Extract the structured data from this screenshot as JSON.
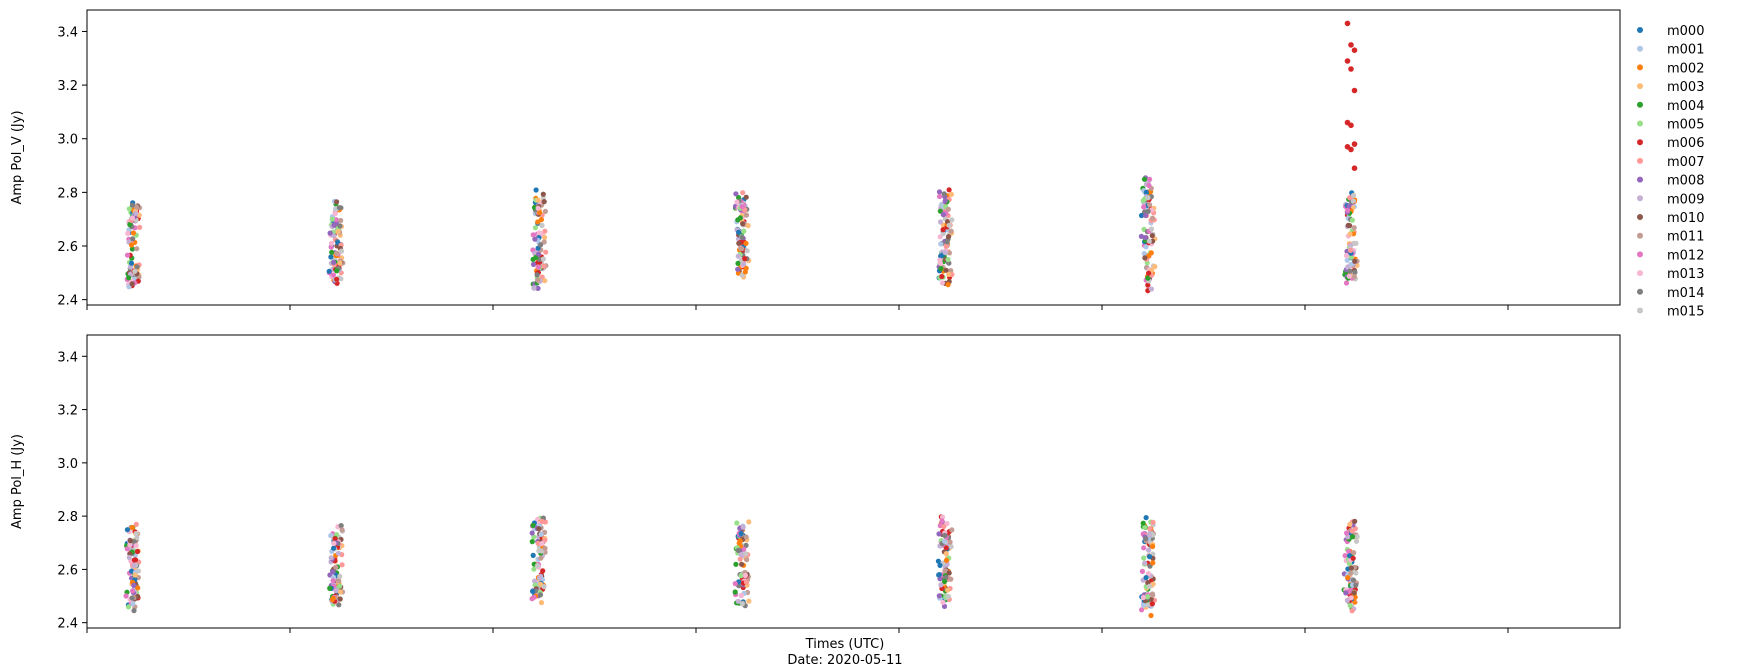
{
  "chart_data": {
    "type": "scatter",
    "xlabel": "Times (UTC)",
    "date_label": "Date: 2020-05-11",
    "x_tick_labels_visible": false,
    "x_tick_count": 8,
    "ylim": [
      2.38,
      3.48
    ],
    "yticks": [
      2.4,
      2.6,
      2.8,
      3.0,
      3.2,
      3.4
    ],
    "ytick_labels": [
      "2.4",
      "2.6",
      "2.8",
      "3.0",
      "3.2",
      "3.4"
    ],
    "grid": false,
    "legend_placement": "right-outside",
    "time_groups": [
      0.22,
      1.33,
      2.55,
      3.73,
      4.87,
      6.0,
      7.2
    ],
    "series": [
      {
        "name": "m000",
        "color": "#1f77b4"
      },
      {
        "name": "m001",
        "color": "#aec7e8"
      },
      {
        "name": "m002",
        "color": "#ff7f0e"
      },
      {
        "name": "m003",
        "color": "#ffbb78"
      },
      {
        "name": "m004",
        "color": "#2ca02c"
      },
      {
        "name": "m005",
        "color": "#98df8a"
      },
      {
        "name": "m006",
        "color": "#d62728"
      },
      {
        "name": "m007",
        "color": "#ff9896"
      },
      {
        "name": "m008",
        "color": "#9467bd"
      },
      {
        "name": "m009",
        "color": "#c5b0d5"
      },
      {
        "name": "m010",
        "color": "#8c564b"
      },
      {
        "name": "m011",
        "color": "#c49c94"
      },
      {
        "name": "m012",
        "color": "#e377c2"
      },
      {
        "name": "m013",
        "color": "#f7b6d2"
      },
      {
        "name": "m014",
        "color": "#7f7f7f"
      },
      {
        "name": "m015",
        "color": "#c7c7c7"
      }
    ],
    "panels": [
      {
        "ylabel": "Amp Pol_V (Jy)",
        "group_ranges": [
          [
            2.44,
            2.78
          ],
          [
            2.46,
            2.78
          ],
          [
            2.44,
            2.81
          ],
          [
            2.47,
            2.81
          ],
          [
            2.45,
            2.82
          ],
          [
            2.43,
            2.86
          ],
          [
            2.45,
            2.81
          ]
        ],
        "highlights": [
          {
            "series": "m006",
            "group": 6,
            "values": [
              3.43,
              3.35,
              3.33,
              3.29,
              3.26,
              3.18,
              3.06,
              3.05,
              2.98,
              2.97,
              2.96,
              2.89
            ]
          }
        ]
      },
      {
        "ylabel": "Amp Pol_H (Jy)",
        "group_ranges": [
          [
            2.44,
            2.78
          ],
          [
            2.45,
            2.77
          ],
          [
            2.46,
            2.8
          ],
          [
            2.46,
            2.78
          ],
          [
            2.46,
            2.8
          ],
          [
            2.42,
            2.8
          ],
          [
            2.43,
            2.8
          ]
        ],
        "highlights": []
      }
    ]
  }
}
